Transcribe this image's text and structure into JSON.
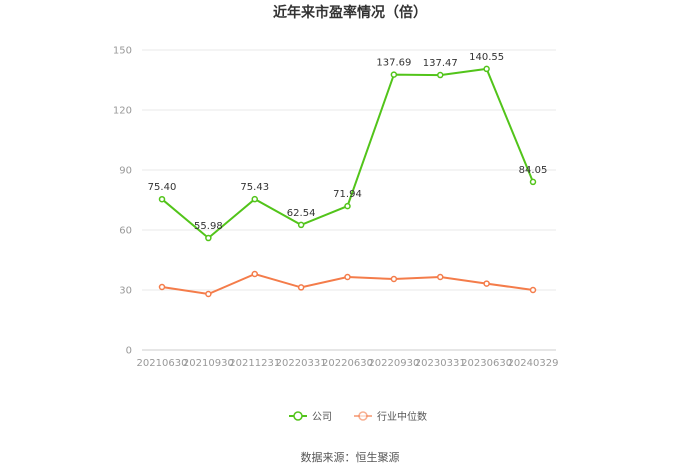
{
  "chart_data": {
    "type": "line",
    "title": "近年来市盈率情况（倍）",
    "xlabel": "",
    "ylabel": "",
    "categories": [
      "20210630",
      "20210930",
      "20211231",
      "20220331",
      "20220630",
      "20220930",
      "20230331",
      "20230630",
      "20240329"
    ],
    "ylim": [
      0,
      150
    ],
    "yticks": [
      0,
      30,
      60,
      90,
      120,
      150
    ],
    "grid": true,
    "legend_position": "bottom",
    "series": [
      {
        "name": "公司",
        "color": "#52c41a",
        "values": [
          75.4,
          55.98,
          75.43,
          62.54,
          71.94,
          137.69,
          137.47,
          140.55,
          84.05
        ],
        "labels": [
          "75.40",
          "55.98",
          "75.43",
          "62.54",
          "71.94",
          "137.69",
          "137.47",
          "140.55",
          "84.05"
        ]
      },
      {
        "name": "行业中位数",
        "color": "#f47c4a",
        "values": [
          31.5,
          28.0,
          38.0,
          31.3,
          36.5,
          35.5,
          36.5,
          33.2,
          30.0
        ]
      }
    ],
    "source": "数据来源：恒生聚源"
  }
}
